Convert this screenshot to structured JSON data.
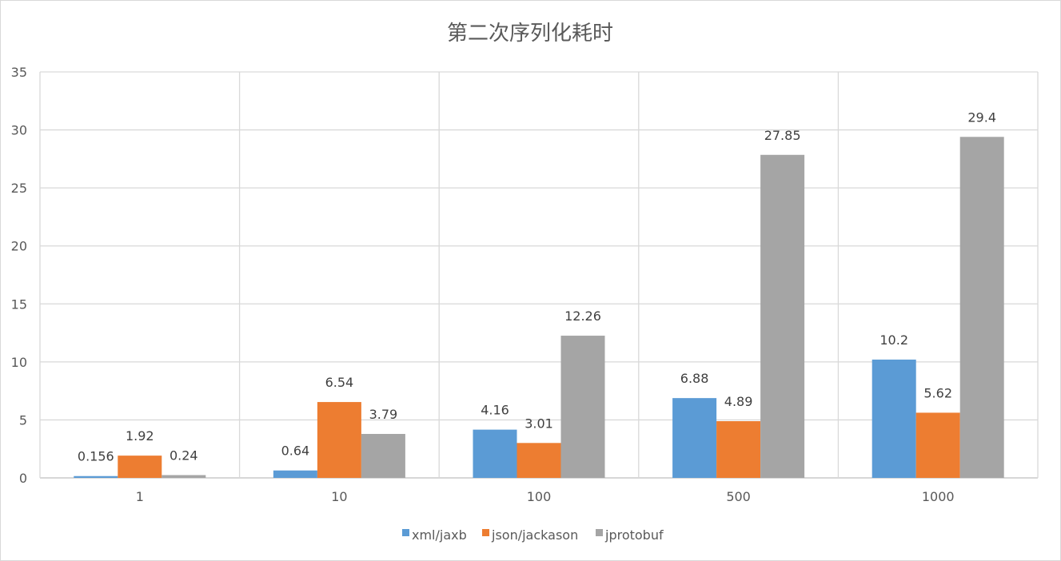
{
  "chart_data": {
    "type": "bar",
    "title": "第二次序列化耗时",
    "xlabel": "",
    "ylabel": "",
    "categories": [
      "1",
      "10",
      "100",
      "500",
      "1000"
    ],
    "ylim": [
      0,
      35
    ],
    "yticks": [
      0,
      5,
      10,
      15,
      20,
      25,
      30,
      35
    ],
    "grid": true,
    "legend_position": "bottom",
    "series": [
      {
        "name": "xml/jaxb",
        "color": "#5b9bd5",
        "values": [
          0.156,
          0.64,
          4.16,
          6.88,
          10.2
        ],
        "labels": [
          "0.156",
          "0.64",
          "4.16",
          "6.88",
          "10.2"
        ]
      },
      {
        "name": "json/jackason",
        "color": "#ed7d31",
        "values": [
          1.92,
          6.54,
          3.01,
          4.89,
          5.62
        ],
        "labels": [
          "1.92",
          "6.54",
          "3.01",
          "4.89",
          "5.62"
        ]
      },
      {
        "name": "jprotobuf",
        "color": "#a5a5a5",
        "values": [
          0.24,
          3.79,
          12.26,
          27.85,
          29.4
        ],
        "labels": [
          "0.24",
          "3.79",
          "12.26",
          "27.85",
          "29.4"
        ]
      }
    ]
  }
}
